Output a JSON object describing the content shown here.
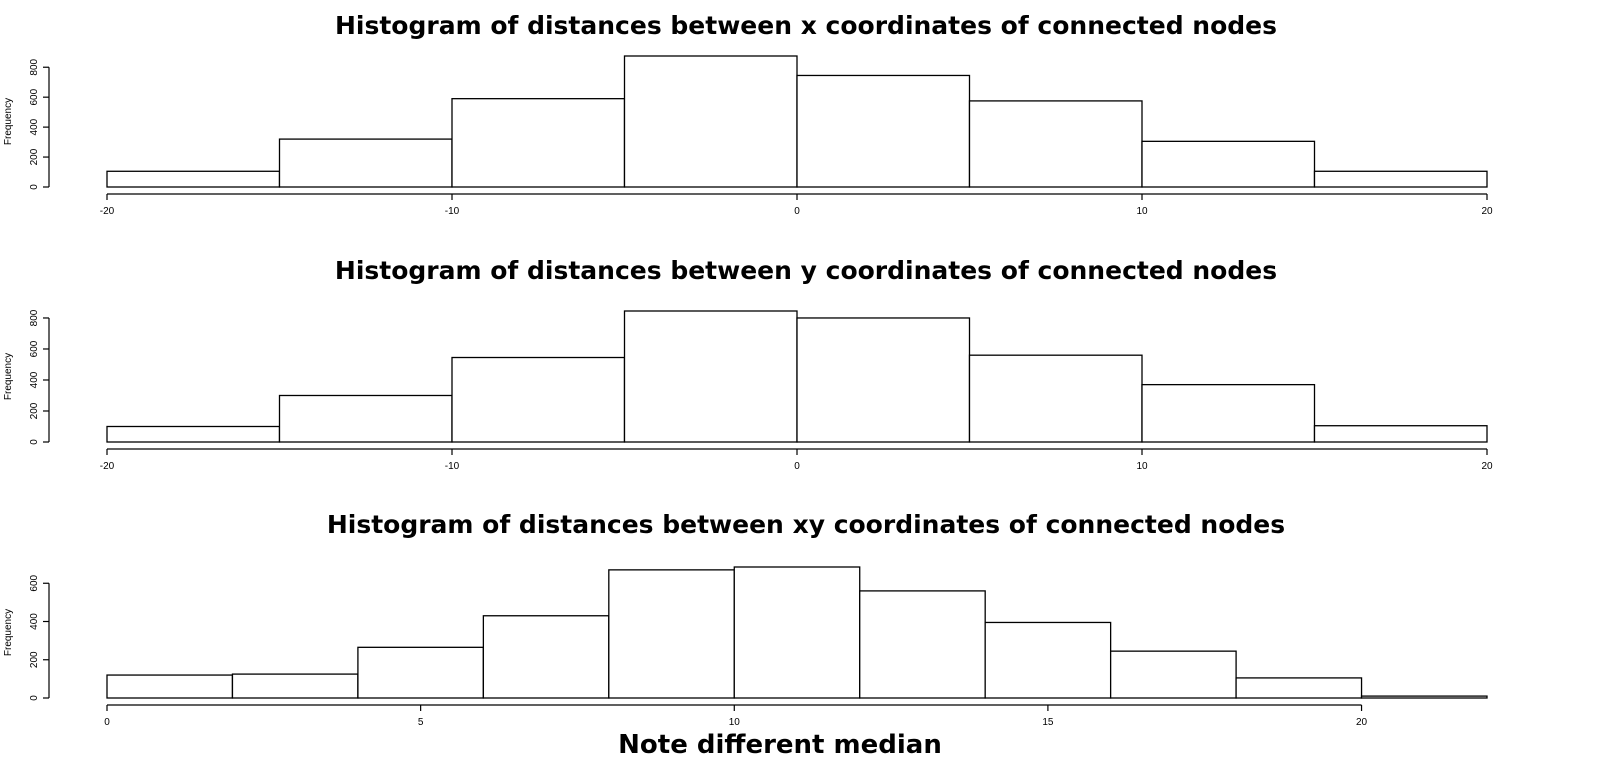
{
  "note": "Note different median",
  "chart_data": [
    {
      "type": "bar",
      "title": "Histogram of distances between x coordinates of connected nodes",
      "xlabel": "",
      "ylabel": "Frequency",
      "bin_edges": [
        -20,
        -15,
        -10,
        -5,
        0,
        5,
        10,
        15,
        20
      ],
      "values": [
        105,
        320,
        590,
        875,
        745,
        575,
        305,
        105
      ],
      "xlim": [
        -20,
        20
      ],
      "ylim": [
        0,
        875
      ],
      "xticks": [
        -20,
        -10,
        0,
        10,
        20
      ],
      "yticks": [
        0,
        200,
        400,
        600,
        800
      ],
      "grid": false
    },
    {
      "type": "bar",
      "title": "Histogram of distances between y coordinates of connected nodes",
      "xlabel": "",
      "ylabel": "Frequency",
      "bin_edges": [
        -20,
        -15,
        -10,
        -5,
        0,
        5,
        10,
        15,
        20
      ],
      "values": [
        100,
        300,
        545,
        845,
        800,
        560,
        370,
        105
      ],
      "xlim": [
        -20,
        20
      ],
      "ylim": [
        0,
        845
      ],
      "xticks": [
        -20,
        -10,
        0,
        10,
        20
      ],
      "yticks": [
        0,
        200,
        400,
        600,
        800
      ],
      "grid": false
    },
    {
      "type": "bar",
      "title": "Histogram of distances between xy coordinates of connected nodes",
      "xlabel": "",
      "ylabel": "Frequency",
      "bin_edges": [
        0,
        2,
        4,
        6,
        8,
        10,
        12,
        14,
        16,
        18,
        20,
        22
      ],
      "values": [
        120,
        125,
        265,
        430,
        670,
        685,
        560,
        395,
        245,
        105,
        10
      ],
      "xlim": [
        0,
        22
      ],
      "ylim": [
        0,
        685
      ],
      "xticks": [
        0,
        5,
        10,
        15,
        20
      ],
      "yticks": [
        0,
        200,
        400,
        600
      ],
      "grid": false
    }
  ]
}
